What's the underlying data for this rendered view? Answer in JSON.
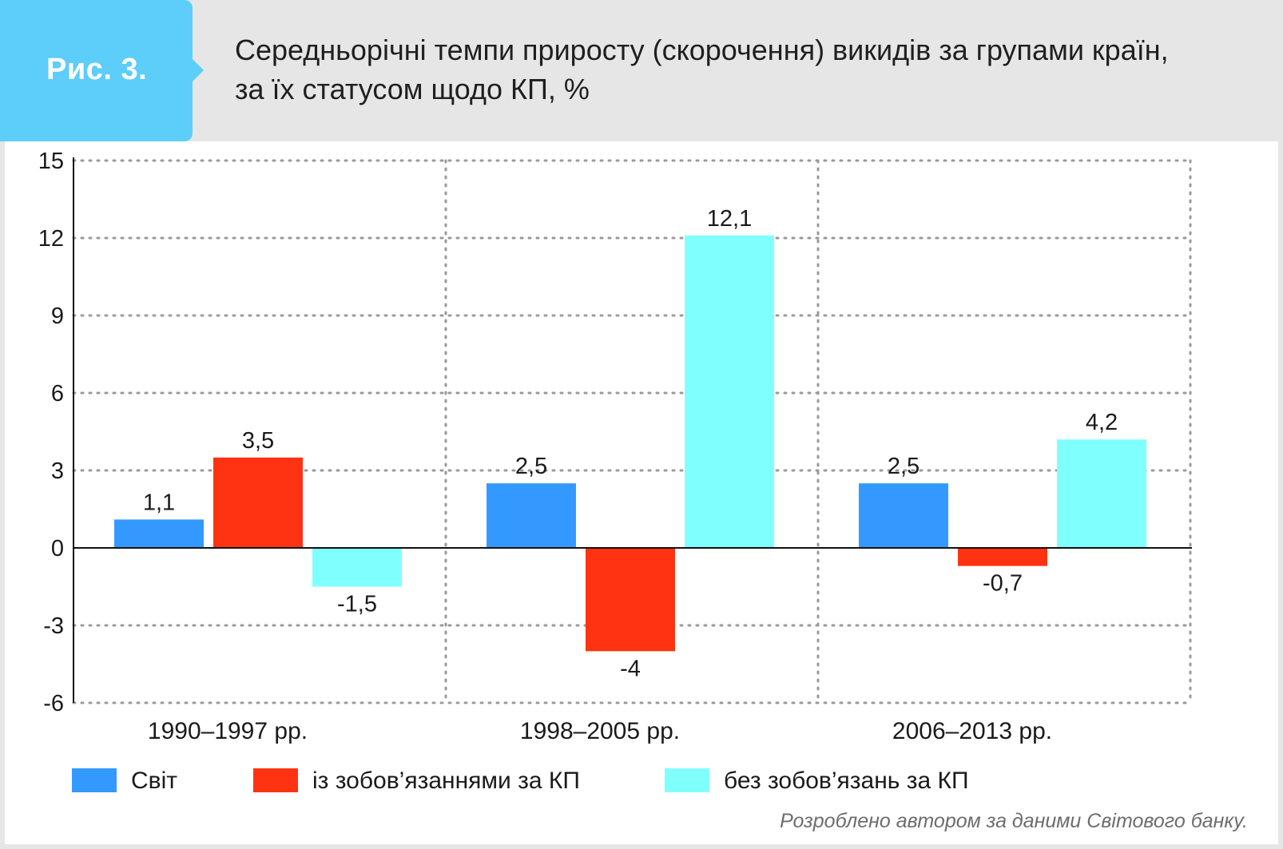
{
  "figure_label": "Рис. 3.",
  "title_lines": [
    "Середньорічні темпи приросту (скорочення) викидів за групами країн,",
    "за їх статусом щодо КП, %"
  ],
  "source_note": "Розроблено автором за даними Світового банку.",
  "colors": {
    "header_bg": "#e6e6e6",
    "badge": "#5dcdf9",
    "world": "#3399ff",
    "with_commitments": "#ff3311",
    "without_commitments": "#80ffff"
  },
  "chart_data": {
    "type": "bar",
    "categories": [
      "1990–1997 рр.",
      "1998–2005 рр.",
      "2006–2013 рр."
    ],
    "series": [
      {
        "name": "Світ",
        "values": [
          1.1,
          2.5,
          2.5
        ],
        "labels": [
          "1,1",
          "2,5",
          "2,5"
        ],
        "color": "#3399ff"
      },
      {
        "name": "із зобов’язаннями за КП",
        "values": [
          3.5,
          -4,
          -0.7
        ],
        "labels": [
          "3,5",
          "-4",
          "-0,7"
        ],
        "color": "#ff3311"
      },
      {
        "name": "без зобов’язань за КП",
        "values": [
          -1.5,
          12.1,
          4.2
        ],
        "labels": [
          "-1,5",
          "12,1",
          "4,2"
        ],
        "color": "#80ffff"
      }
    ],
    "yticks": [
      "15",
      "12",
      "9",
      "6",
      "3",
      "0",
      "-3",
      "-6"
    ],
    "ytick_values": [
      15,
      12,
      9,
      6,
      3,
      0,
      -3,
      -6
    ],
    "ylim": [
      -6,
      15
    ],
    "grid": "dotted",
    "legend_position": "bottom"
  }
}
